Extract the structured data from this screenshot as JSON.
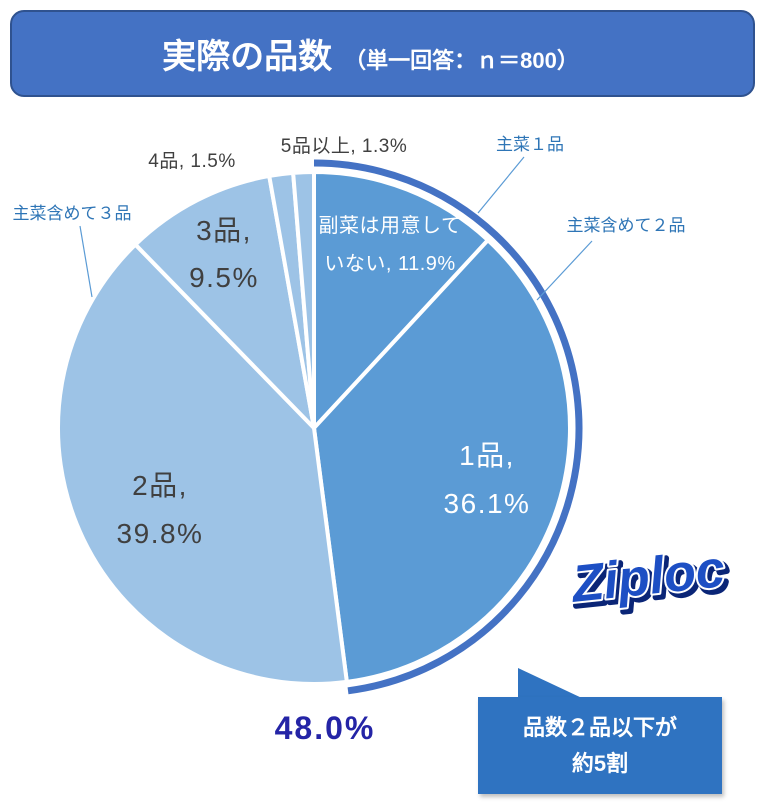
{
  "chart_data": {
    "type": "pie",
    "title": "実際の品数",
    "subtitle": "（単一回答：ｎ＝800）",
    "categories": [
      "副菜は用意していない",
      "1品",
      "2品",
      "3品",
      "4品",
      "5品以上"
    ],
    "values": [
      11.9,
      36.1,
      39.8,
      9.5,
      1.5,
      1.3
    ],
    "unit": "%",
    "colors": [
      "#5B9BD5",
      "#5B9BD5",
      "#9DC3E6",
      "#9DC3E6",
      "#9DC3E6",
      "#9DC3E6"
    ],
    "annotations": [
      "主菜１品",
      "主菜含めて２品",
      "主菜含めて３品"
    ],
    "bracket": {
      "label": "48.0%",
      "value": 48.0,
      "color": "#4472C4"
    }
  },
  "callout": {
    "lines": [
      "品数２品以下が",
      "約5割"
    ],
    "color": "#2F73C1"
  },
  "logo": {
    "text": "Ziploc"
  }
}
